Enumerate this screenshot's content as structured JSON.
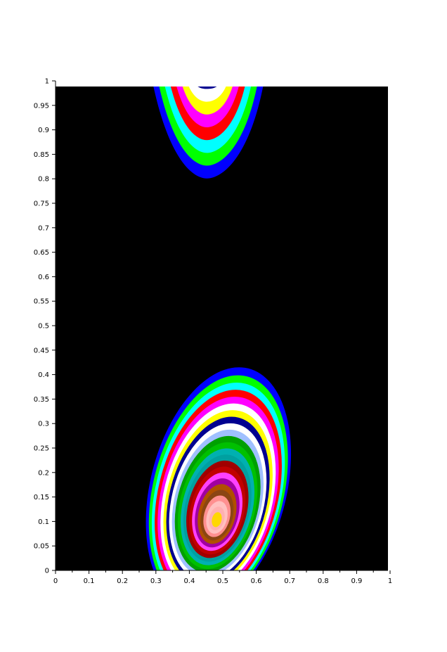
{
  "chart_data": {
    "type": "heatmap",
    "title": "",
    "xlabel": "",
    "ylabel": "",
    "xlim": [
      0,
      1
    ],
    "ylim": [
      0,
      1
    ],
    "x_ticks": [
      "0",
      "0.1",
      "0.2",
      "0.3",
      "0.4",
      "0.5",
      "0.6",
      "0.7",
      "0.8",
      "0.9",
      "1"
    ],
    "y_ticks": [
      "0",
      "0.05",
      "0.1",
      "0.15",
      "0.2",
      "0.25",
      "0.3",
      "0.35",
      "0.4",
      "0.45",
      "0.5",
      "0.55",
      "0.6",
      "0.65",
      "0.7",
      "0.75",
      "0.8",
      "0.85",
      "0.9",
      "0.95",
      "1"
    ],
    "background_color": "#000000",
    "regions": [
      {
        "name": "lower-blob",
        "center": [
          0.485,
          0.105
        ],
        "outer_extent": {
          "x": [
            0.285,
            0.695
          ],
          "y": [
            0.0,
            0.42
          ]
        },
        "inner_core_color": "#ffd700",
        "bands_outer_to_inner": [
          "#0000ff",
          "#00ff00",
          "#00ffff",
          "#ff0000",
          "#ff00ff",
          "#ffffff",
          "#ffff00",
          "#000090",
          "#ffffff",
          "#a0c0ff",
          "#00a000",
          "#00c000",
          "#00b0b0",
          "#00a0a0",
          "#a00000",
          "#c00000",
          "#ff40ff",
          "#a000a0",
          "#b05000",
          "#8b4513",
          "#ff9090",
          "#ffc0c0",
          "#ffb0b0",
          "#ffd700"
        ]
      },
      {
        "name": "upper-blob",
        "center": [
          0.45,
          1.0
        ],
        "outer_extent": {
          "x": [
            0.3,
            0.62
          ],
          "y": [
            0.8,
            1.0
          ]
        },
        "bands_outer_to_inner": [
          "#0000ff",
          "#00ff00",
          "#00ffff",
          "#ff0000",
          "#ff00ff",
          "#ffff00",
          "#ffffff",
          "#000090"
        ]
      }
    ]
  }
}
